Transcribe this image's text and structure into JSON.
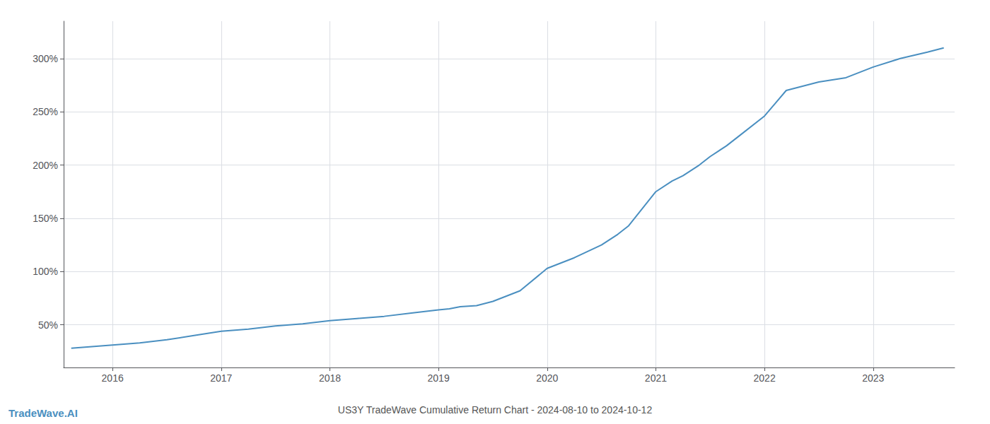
{
  "chart_data": {
    "type": "line",
    "title": "US3Y TradeWave Cumulative Return Chart - 2024-08-10 to 2024-10-12",
    "annotations": [
      "TradeWave.AI"
    ],
    "x": [
      2015.62,
      2016.0,
      2016.25,
      2016.5,
      2016.75,
      2017.0,
      2017.25,
      2017.5,
      2017.75,
      2018.0,
      2018.25,
      2018.5,
      2018.75,
      2019.0,
      2019.1,
      2019.2,
      2019.35,
      2019.5,
      2019.65,
      2019.75,
      2020.0,
      2020.1,
      2020.25,
      2020.5,
      2020.65,
      2020.75,
      2021.0,
      2021.15,
      2021.25,
      2021.4,
      2021.5,
      2021.65,
      2021.75,
      2022.0,
      2022.1,
      2022.2,
      2022.5,
      2022.75,
      2023.0,
      2023.25,
      2023.5,
      2023.65
    ],
    "values": [
      28,
      31,
      33,
      36,
      40,
      44,
      46,
      49,
      51,
      54,
      56,
      58,
      61,
      64,
      65,
      67,
      68,
      72,
      78,
      82,
      103,
      107,
      113,
      125,
      135,
      143,
      175,
      185,
      190,
      200,
      208,
      218,
      226,
      246,
      258,
      270,
      278,
      282,
      292,
      300,
      306,
      310
    ],
    "color": "#4a8fc0",
    "xlim": [
      2015.55,
      2023.75
    ],
    "ylim": [
      10,
      335
    ],
    "xticks": [
      2016,
      2017,
      2018,
      2019,
      2020,
      2021,
      2022,
      2023
    ],
    "yticks": [
      {
        "value": 50,
        "label": "50%"
      },
      {
        "value": 100,
        "label": "100%"
      },
      {
        "value": 150,
        "label": "150%"
      },
      {
        "value": 200,
        "label": "200%"
      },
      {
        "value": 250,
        "label": "250%"
      },
      {
        "value": 300,
        "label": "300%"
      }
    ],
    "grid": true
  }
}
